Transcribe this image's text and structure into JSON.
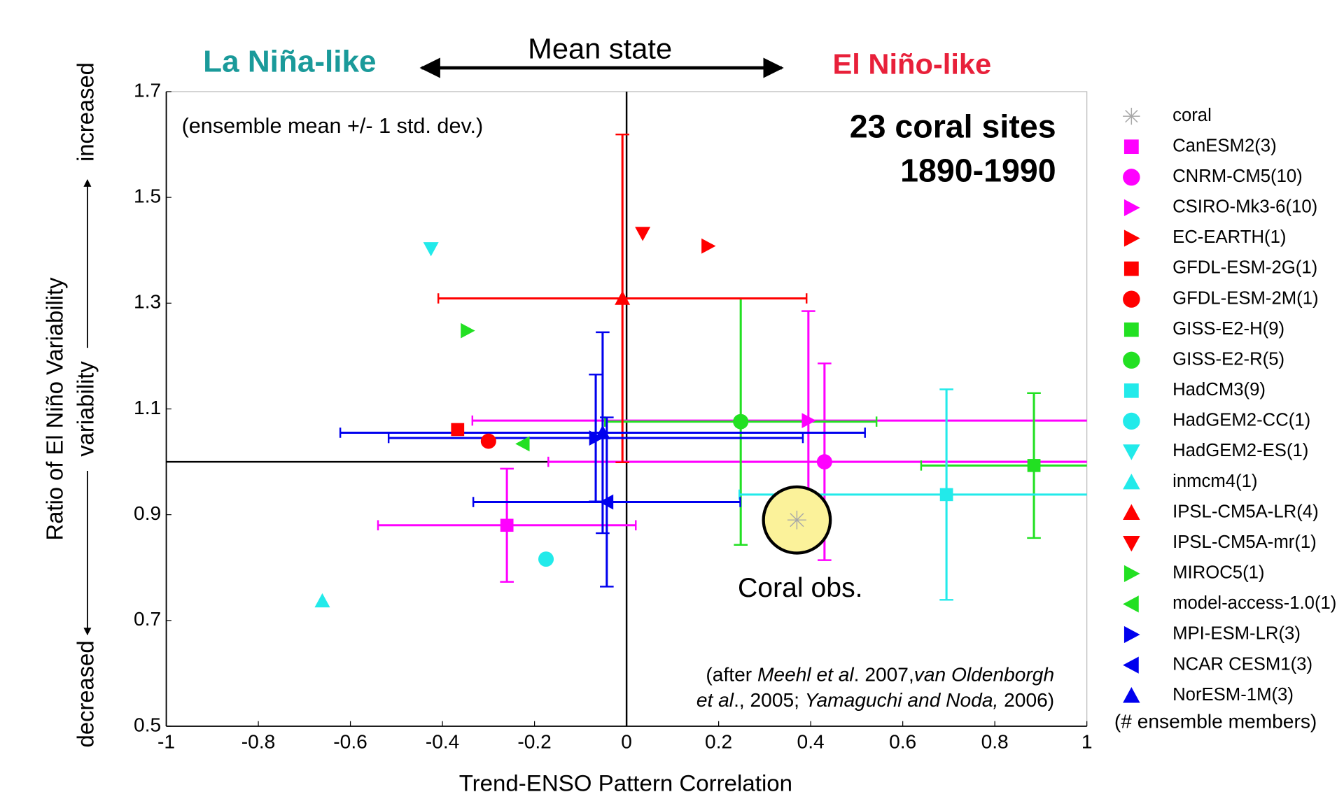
{
  "chart_data": {
    "type": "scatter",
    "title": "Mean state",
    "left_label": "La Niña-like",
    "right_label": "El Niño-like",
    "xlabel": "Trend-ENSO Pattern Correlation",
    "ylabel": "Ratio of El Niño Variability",
    "ylabel2": "variability",
    "y_top_label": "increased",
    "y_bottom_label": "decreased",
    "note": "(ensemble mean +/- 1 std. dev.)",
    "heading": [
      "23 coral sites",
      "1890-1990"
    ],
    "highlight_label": "Coral obs.",
    "citation": [
      [
        {
          "text": "(after "
        },
        {
          "text": "Meehl et al",
          "italic": true
        },
        {
          "text": ". 2007,"
        },
        {
          "text": "van Oldenborgh",
          "italic": true
        }
      ],
      [
        {
          "text": "et al",
          "italic": true
        },
        {
          "text": "., 2005; "
        },
        {
          "text": "Yamaguchi and Noda,",
          "italic": true
        },
        {
          "text": " 2006)"
        }
      ]
    ],
    "legend_note": "(# ensemble members)",
    "xlim": [
      -1,
      1
    ],
    "ylim": [
      0.5,
      1.7
    ],
    "xticks": [
      -1,
      -0.8,
      -0.6,
      -0.4,
      -0.2,
      0,
      0.2,
      0.4,
      0.6,
      0.8,
      1
    ],
    "yticks": [
      0.5,
      0.7,
      0.9,
      1.1,
      1.3,
      1.5,
      1.7
    ],
    "reference_lines": {
      "x": 0,
      "y": 1
    },
    "series": [
      {
        "name": "coral",
        "color": "#a8a8a8",
        "marker": "star",
        "x": [
          0.37
        ],
        "y": [
          0.89
        ],
        "highlight": true
      },
      {
        "name": "CanESM2(3)",
        "color": "#ff00ff",
        "marker": "square",
        "x": [
          -0.26
        ],
        "y": [
          0.88
        ],
        "xerr": [
          0.28
        ],
        "yerr": [
          0.107
        ]
      },
      {
        "name": "CNRM-CM5(10)",
        "color": "#ff00ff",
        "marker": "circle",
        "x": [
          0.43
        ],
        "y": [
          1.0
        ],
        "xerr": [
          0.6
        ],
        "yerr": [
          0.186
        ]
      },
      {
        "name": "CSIRO-Mk3-6(10)",
        "color": "#ff00ff",
        "marker": "triangle-right",
        "x": [
          0.395
        ],
        "y": [
          1.078
        ],
        "xerr": [
          0.73
        ],
        "yerr": [
          0.207
        ]
      },
      {
        "name": "EC-EARTH(1)",
        "color": "#ff0000",
        "marker": "triangle-right",
        "x": [
          0.177
        ],
        "y": [
          1.408
        ]
      },
      {
        "name": "GFDL-ESM-2G(1)",
        "color": "#ff0000",
        "marker": "square",
        "x": [
          -0.367
        ],
        "y": [
          1.061
        ]
      },
      {
        "name": "GFDL-ESM-2M(1)",
        "color": "#ff0000",
        "marker": "circle",
        "x": [
          -0.3
        ],
        "y": [
          1.039
        ]
      },
      {
        "name": "GISS-E2-H(9)",
        "color": "#22e022",
        "marker": "square",
        "x": [
          0.885
        ],
        "y": [
          0.993
        ],
        "xerr": [
          0.245
        ],
        "yerr": [
          0.137
        ]
      },
      {
        "name": "GISS-E2-R(5)",
        "color": "#22e022",
        "marker": "circle",
        "x": [
          0.248
        ],
        "y": [
          1.076
        ],
        "xerr": [
          0.295
        ],
        "yerr": [
          0.233
        ]
      },
      {
        "name": "HadCM3(9)",
        "color": "#22eaea",
        "marker": "square",
        "x": [
          0.695
        ],
        "y": [
          0.938
        ],
        "xerr": [
          0.45
        ],
        "yerr": [
          0.199
        ]
      },
      {
        "name": "HadGEM2-CC(1)",
        "color": "#22eaea",
        "marker": "circle",
        "x": [
          -0.175
        ],
        "y": [
          0.816
        ]
      },
      {
        "name": "HadGEM2-ES(1)",
        "color": "#22eaea",
        "marker": "triangle-down",
        "x": [
          -0.425
        ],
        "y": [
          1.403
        ]
      },
      {
        "name": "inmcm4(1)",
        "color": "#22eaea",
        "marker": "triangle-up",
        "x": [
          -0.661
        ],
        "y": [
          0.737
        ]
      },
      {
        "name": "IPSL-CM5A-LR(4)",
        "color": "#ff0000",
        "marker": "triangle-up",
        "x": [
          -0.009
        ],
        "y": [
          1.309
        ],
        "xerr": [
          0.4
        ],
        "yerr": [
          0.31
        ]
      },
      {
        "name": "IPSL-CM5A-mr(1)",
        "color": "#ff0000",
        "marker": "triangle-down",
        "x": [
          0.035
        ],
        "y": [
          1.432
        ]
      },
      {
        "name": "MIROC5(1)",
        "color": "#22e022",
        "marker": "triangle-right",
        "x": [
          -0.346
        ],
        "y": [
          1.248
        ]
      },
      {
        "name": "model-access-1.0(1)",
        "color": "#22e022",
        "marker": "triangle-left",
        "x": [
          -0.225
        ],
        "y": [
          1.034
        ]
      },
      {
        "name": "MPI-ESM-LR(3)",
        "color": "#0000ee",
        "marker": "triangle-right",
        "x": [
          -0.067
        ],
        "y": [
          1.045
        ],
        "xerr": [
          0.45
        ],
        "yerr": [
          0.12
        ]
      },
      {
        "name": "NCAR CESM1(3)",
        "color": "#0000ee",
        "marker": "triangle-left",
        "x": [
          -0.043
        ],
        "y": [
          0.924
        ],
        "xerr": [
          0.29
        ],
        "yerr": [
          0.16
        ]
      },
      {
        "name": "NorESM-1M(3)",
        "color": "#0000ee",
        "marker": "triangle-up",
        "x": [
          -0.052
        ],
        "y": [
          1.055
        ],
        "xerr": [
          0.57
        ],
        "yerr": [
          0.19
        ]
      }
    ]
  }
}
